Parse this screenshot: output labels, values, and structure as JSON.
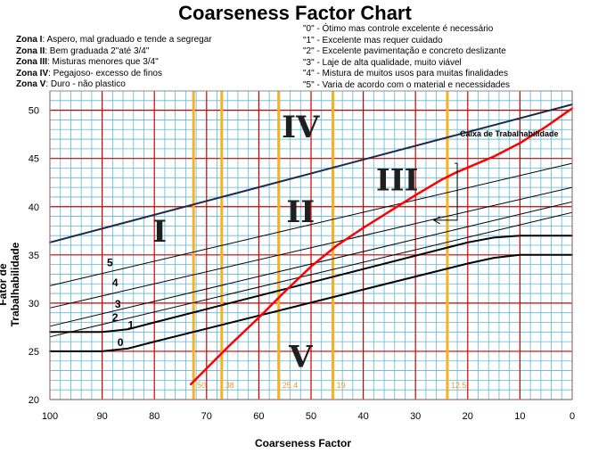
{
  "chart_data": {
    "type": "line",
    "title": "Coarseness Factor Chart",
    "xlabel": "Coarseness Factor",
    "ylabel": "Fator de Trabalhabilidade",
    "xlim": [
      100,
      0
    ],
    "ylim": [
      20,
      52
    ],
    "x_ticks": [
      "100",
      "90",
      "80",
      "70",
      "60",
      "50",
      "40",
      "30",
      "20",
      "10",
      "0"
    ],
    "y_ticks": [
      "20",
      "25",
      "30",
      "35",
      "40",
      "45",
      "50"
    ],
    "grid": true,
    "zones": [
      {
        "label": "Zona I",
        "text": ": Aspero, mal graduado e tende a segregar"
      },
      {
        "label": "Zona II",
        "text": ": Bem graduada  2\"até 3/4\""
      },
      {
        "label": "Zona III",
        "text": ": Misturas menores  que 3/4\""
      },
      {
        "label": "Zona IV",
        "text": ": Pegajoso- excesso de finos"
      },
      {
        "label": "Zona V",
        "text": ": Duro - não  plastico"
      }
    ],
    "levels": [
      "\"0\" - Ótimo mas controle excelente  é necessário",
      "\"1\" - Excelente mas requer cuidado",
      "\"2\" - Excelente pavimentação e concreto deslizante",
      "\"3\" - Laje de alta qualidade, muito viável",
      "\"4\" - Mistura de muitos usos  para muitas finalidades",
      "\"5\" - Varia de acordo com o material e necessidades"
    ],
    "zone_labels": [
      {
        "text": "I",
        "x": 79,
        "y": 37.5
      },
      {
        "text": "II",
        "x": 52,
        "y": 39.5
      },
      {
        "text": "III",
        "x": 33.5,
        "y": 42.8
      },
      {
        "text": "IV",
        "x": 52,
        "y": 48.3
      },
      {
        "text": "V",
        "x": 52,
        "y": 24.5
      }
    ],
    "curve_labels": [
      {
        "text": "5",
        "x": 88.5,
        "y": 34.2
      },
      {
        "text": "4",
        "x": 87.5,
        "y": 32.1
      },
      {
        "text": "3",
        "x": 87.0,
        "y": 29.9
      },
      {
        "text": "2",
        "x": 87.5,
        "y": 28.5
      },
      {
        "text": "1",
        "x": 84.5,
        "y": 27.7
      },
      {
        "text": "0",
        "x": 86.5,
        "y": 25.9
      }
    ],
    "annotation": {
      "text": "Caixa de Trabalhabilidade",
      "x": 21.5,
      "y": 47.3,
      "bracket": [
        [
          22.5,
          44.5
        ],
        [
          22.0,
          44.5
        ],
        [
          22.0,
          38.6
        ],
        [
          26.5,
          38.6
        ]
      ]
    },
    "series": [
      {
        "color": "#1c2a4a",
        "width": 2,
        "x": [
          100,
          0
        ],
        "y": [
          36.3,
          50.6
        ]
      },
      {
        "color": "#000000",
        "width": 1,
        "x": [
          100,
          0
        ],
        "y": [
          31.8,
          44.5
        ]
      },
      {
        "color": "#000000",
        "width": 1,
        "x": [
          100,
          0
        ],
        "y": [
          29.5,
          42.0
        ]
      },
      {
        "color": "#000000",
        "width": 1,
        "x": [
          100,
          0
        ],
        "y": [
          27.6,
          40.5
        ]
      },
      {
        "color": "#000000",
        "width": 1,
        "x": [
          100,
          0
        ],
        "y": [
          26.5,
          39.4
        ]
      },
      {
        "color": "#000000",
        "width": 2,
        "x": [
          100,
          90,
          85,
          80,
          20,
          15,
          10,
          0
        ],
        "y": [
          27.0,
          27.0,
          27.3,
          28.0,
          36.3,
          36.8,
          37.0,
          37.0
        ]
      },
      {
        "color": "#000000",
        "width": 2,
        "x": [
          100,
          90,
          85,
          80,
          20,
          15,
          10,
          0
        ],
        "y": [
          25.0,
          25.0,
          25.3,
          26.0,
          34.1,
          34.7,
          35.0,
          35.0
        ]
      },
      {
        "color": "#ff0000",
        "width": 2.5,
        "x": [
          73,
          66,
          60,
          55,
          50,
          45,
          40,
          35,
          30,
          25,
          22,
          15,
          10,
          5,
          0
        ],
        "y": [
          21.6,
          25.4,
          28.5,
          31.2,
          33.8,
          36.0,
          37.8,
          39.5,
          41.2,
          42.8,
          43.6,
          45.2,
          46.6,
          48.3,
          50.2
        ]
      }
    ],
    "sieves": [
      {
        "label": "50",
        "x": 72.5
      },
      {
        "label": "38",
        "x": 67.1
      },
      {
        "label": "25.4",
        "x": 56.2
      },
      {
        "label": "19",
        "x": 45.8
      },
      {
        "label": "12.5",
        "x": 23.9
      }
    ],
    "colors": {
      "major_grid": "#cc0000",
      "minor_grid": "#5eb7d6",
      "sieve_lines": "#f5b324",
      "workability_curve": "#ff0000"
    }
  }
}
